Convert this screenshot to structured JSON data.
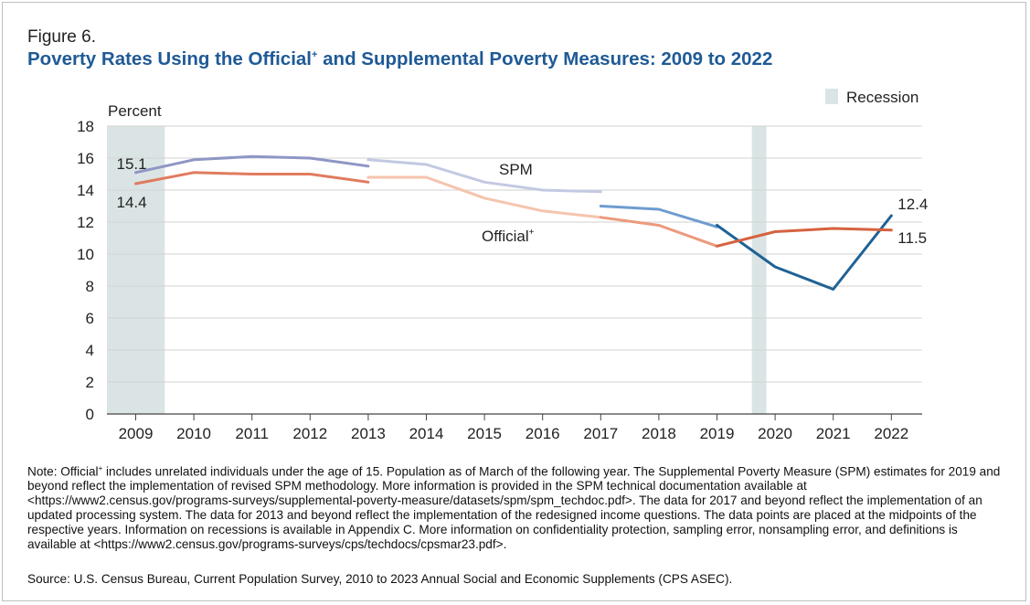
{
  "figure_label": "Figure 6.",
  "title_prefix": "Poverty Rates Using the Official",
  "title_sup": "+",
  "title_suffix": " and Supplemental Poverty Measures: 2009 to 2022",
  "chart_data": {
    "type": "line",
    "ylabel": "Percent",
    "ylim": [
      0,
      18
    ],
    "yticks": [
      0,
      2,
      4,
      6,
      8,
      10,
      12,
      14,
      16,
      18
    ],
    "x": [
      2009,
      2010,
      2011,
      2012,
      2013,
      2014,
      2015,
      2016,
      2017,
      2018,
      2019,
      2020,
      2021,
      2022
    ],
    "grid": true,
    "legend": {
      "label": "Recession",
      "color": "#dbe4e4",
      "placement": "top-right"
    },
    "recessions": [
      [
        2008.5,
        2009.5
      ],
      [
        2019.6,
        2019.85
      ]
    ],
    "series": [
      {
        "name": "SPM",
        "segments": [
          {
            "x": [
              2009,
              2010,
              2011,
              2012,
              2013
            ],
            "y": [
              15.1,
              15.9,
              16.1,
              16.0,
              15.5
            ],
            "color": "#8e96c4"
          },
          {
            "x": [
              2013,
              2014,
              2015,
              2016,
              2017
            ],
            "y": [
              15.9,
              15.6,
              14.5,
              14.0,
              13.9
            ],
            "color": "#c3c9e2"
          },
          {
            "x": [
              2017,
              2018,
              2019
            ],
            "y": [
              13.0,
              12.8,
              11.7
            ],
            "color": "#6e9ccf"
          },
          {
            "x": [
              2019,
              2020,
              2021,
              2022
            ],
            "y": [
              11.8,
              9.2,
              7.8,
              12.4
            ],
            "color": "#1f6295"
          }
        ]
      },
      {
        "name": "Official",
        "name_sup": "+",
        "segments": [
          {
            "x": [
              2009,
              2010,
              2011,
              2012,
              2013
            ],
            "y": [
              14.4,
              15.1,
              15.0,
              15.0,
              14.5
            ],
            "color": "#e07b5f"
          },
          {
            "x": [
              2013,
              2014,
              2015,
              2016,
              2017
            ],
            "y": [
              14.8,
              14.8,
              13.5,
              12.7,
              12.3
            ],
            "color": "#f5c4ae"
          },
          {
            "x": [
              2017,
              2018,
              2019
            ],
            "y": [
              12.3,
              11.8,
              10.5
            ],
            "color": "#ec9a7c"
          },
          {
            "x": [
              2019,
              2020,
              2021,
              2022
            ],
            "y": [
              10.5,
              11.4,
              11.6,
              11.5
            ],
            "color": "#d6623f"
          }
        ]
      }
    ],
    "annotations": [
      {
        "text": "15.1",
        "x": 2009,
        "y": 15.1
      },
      {
        "text": "14.4",
        "x": 2009,
        "y": 14.4
      },
      {
        "text": "12.4",
        "x": 2022,
        "y": 12.4
      },
      {
        "text": "11.5",
        "x": 2022,
        "y": 11.5
      }
    ]
  },
  "note_prefix": "Note: Official",
  "note_sup": "+",
  "note_text": " includes unrelated individuals under the age of 15. Population as of March of the following year. The Supplemental Poverty Measure (SPM) estimates for 2019 and beyond reflect the implementation of revised SPM methodology. More information is provided in the SPM technical documentation available at <https://www2.census.gov/programs-surveys/supplemental-poverty-measure/datasets/spm/spm_techdoc.pdf>. The data for 2017 and beyond reflect the implementation of an updated processing system. The data for 2013 and beyond reflect the implementation of the redesigned income questions. The data points are placed at the midpoints of the respective years. Information on recessions is available in Appendix C. More information on confidentiality protection, sampling error, nonsampling error, and definitions is available at <https://www2.census.gov/programs-surveys/cps/techdocs/cpsmar23.pdf>.",
  "source": "Source: U.S. Census Bureau, Current Population Survey, 2010 to 2023 Annual Social and Economic Supplements (CPS ASEC)."
}
